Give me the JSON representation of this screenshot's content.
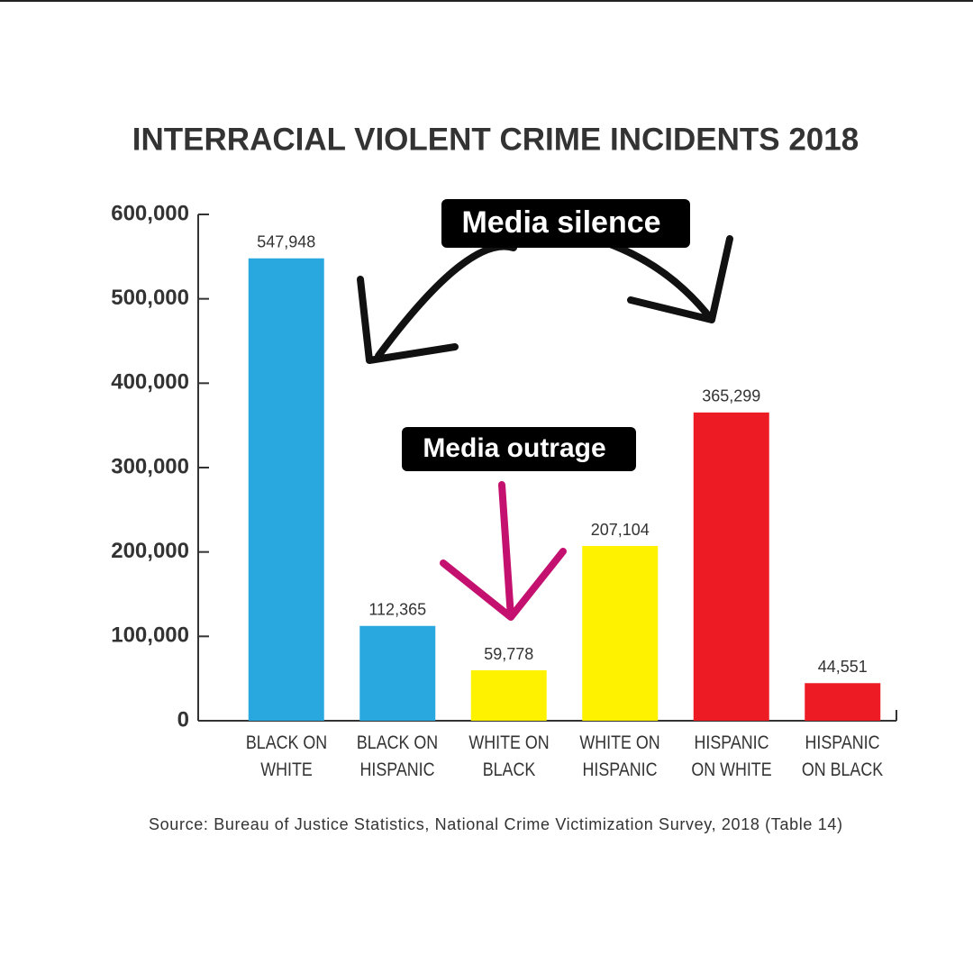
{
  "chart_data": {
    "type": "bar",
    "title": "INTERRACIAL VIOLENT CRIME INCIDENTS 2018",
    "categories": [
      "BLACK ON\nWHITE",
      "BLACK ON\nHISPANIC",
      "WHITE ON\nBLACK",
      "WHITE ON\nHISPANIC",
      "HISPANIC\nON WHITE",
      "HISPANIC\nON BLACK"
    ],
    "values": [
      547948,
      112365,
      59778,
      207104,
      365299,
      44551
    ],
    "value_labels": [
      "547,948",
      "112,365",
      "59,778",
      "207,104",
      "365,299",
      "44,551"
    ],
    "colors": [
      "#29a8e0",
      "#29a8e0",
      "#fff200",
      "#fff200",
      "#ed1c24",
      "#ed1c24"
    ],
    "ylim": [
      0,
      600000
    ],
    "yticks": [
      0,
      {
        "value": 100000,
        "label": "100,000"
      },
      {
        "value": 200000,
        "label": "200,000"
      },
      {
        "value": 300000,
        "label": "300,000"
      },
      {
        "value": 400000,
        "label": "400,000"
      },
      {
        "value": 500000,
        "label": "500,000"
      },
      {
        "value": 600000,
        "label": "600,000"
      }
    ],
    "annotations": [
      "Media silence",
      "Media outrage"
    ],
    "source": "Source: Bureau of Justice Statistics, National Crime Victimization Survey, 2018 (Table 14)"
  }
}
